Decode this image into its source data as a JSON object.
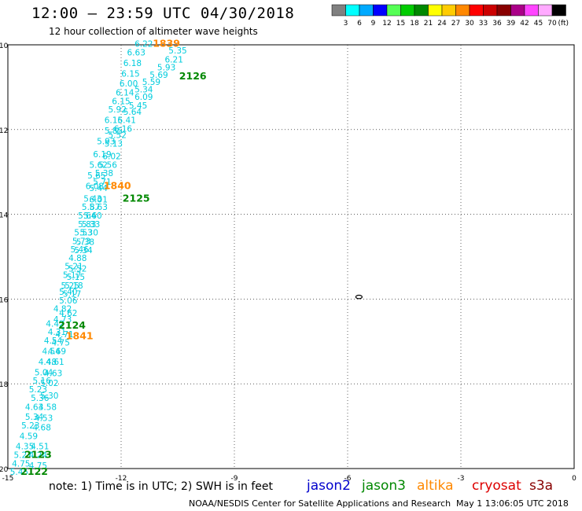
{
  "header": {
    "title": "12:00 — 23:59 UTC 04/30/2018",
    "subtitle": "12 hour collection of altimeter wave heights"
  },
  "color_scale": {
    "units": "(ft)",
    "bins": [
      {
        "label": "3",
        "color": "#808080"
      },
      {
        "label": "6",
        "color": "#00ffff"
      },
      {
        "label": "9",
        "color": "#00aaff"
      },
      {
        "label": "12",
        "color": "#0000ff"
      },
      {
        "label": "15",
        "color": "#55ff55"
      },
      {
        "label": "18",
        "color": "#00cc00"
      },
      {
        "label": "21",
        "color": "#008800"
      },
      {
        "label": "24",
        "color": "#ffff00"
      },
      {
        "label": "27",
        "color": "#ffcc00"
      },
      {
        "label": "30",
        "color": "#ff8800"
      },
      {
        "label": "33",
        "color": "#ff0000"
      },
      {
        "label": "36",
        "color": "#cc0000"
      },
      {
        "label": "39",
        "color": "#880000"
      },
      {
        "label": "42",
        "color": "#aa0088"
      },
      {
        "label": "45",
        "color": "#ff44ff"
      },
      {
        "label": "70",
        "color": "#ffaaff"
      },
      {
        "label": "",
        "color": "#000000"
      }
    ]
  },
  "map": {
    "lon_range": [
      -15,
      0
    ],
    "lat_range": [
      -20,
      -10
    ],
    "x_ticks": [
      "-15",
      "-12",
      "-9",
      "-6",
      "-3",
      "0"
    ],
    "y_ticks": [
      "-10",
      "-12",
      "-14",
      "-16",
      "-18",
      "-20"
    ],
    "grid": true,
    "grid_style": "dotted",
    "island_marker": {
      "lon": -5.7,
      "lat": -15.95
    }
  },
  "chart_data": {
    "type": "scatter",
    "xlabel": "",
    "ylabel": "",
    "xlim": [
      -15,
      0
    ],
    "ylim": [
      -20,
      -10
    ],
    "tracks": [
      {
        "satellite": "jason3",
        "color_key": "cyan",
        "points": [
          {
            "lon": -11.4,
            "lat": -10.05,
            "v": "6.22"
          },
          {
            "lon": -11.6,
            "lat": -10.25,
            "v": "6.63"
          },
          {
            "lon": -10.5,
            "lat": -10.2,
            "v": "5.35"
          },
          {
            "lon": -10.6,
            "lat": -10.42,
            "v": "6.21"
          },
          {
            "lon": -11.7,
            "lat": -10.5,
            "v": "6.18"
          },
          {
            "lon": -10.8,
            "lat": -10.6,
            "v": "5.93"
          },
          {
            "lon": -11.75,
            "lat": -10.75,
            "v": "6.15"
          },
          {
            "lon": -11.0,
            "lat": -10.78,
            "v": "5.69"
          },
          {
            "lon": -11.8,
            "lat": -10.98,
            "v": "6.00"
          },
          {
            "lon": -11.2,
            "lat": -10.95,
            "v": "5.59"
          },
          {
            "lon": -11.4,
            "lat": -11.12,
            "v": "5.34"
          },
          {
            "lon": -11.9,
            "lat": -11.2,
            "v": "6.14"
          },
          {
            "lon": -11.4,
            "lat": -11.3,
            "v": "6.09"
          },
          {
            "lon": -12.0,
            "lat": -11.4,
            "v": "6.15"
          },
          {
            "lon": -11.55,
            "lat": -11.5,
            "v": "5.45"
          },
          {
            "lon": -12.1,
            "lat": -11.6,
            "v": "5.92"
          },
          {
            "lon": -11.7,
            "lat": -11.65,
            "v": "5.64"
          },
          {
            "lon": -12.2,
            "lat": -11.85,
            "v": "6.16"
          },
          {
            "lon": -11.85,
            "lat": -11.85,
            "v": "5.41"
          },
          {
            "lon": -12.2,
            "lat": -12.1,
            "v": "5.85"
          },
          {
            "lon": -11.95,
            "lat": -12.05,
            "v": "6.16"
          },
          {
            "lon": -12.1,
            "lat": -12.2,
            "v": "5.52"
          },
          {
            "lon": -12.4,
            "lat": -12.35,
            "v": "5.93"
          },
          {
            "lon": -12.2,
            "lat": -12.4,
            "v": "5.13"
          },
          {
            "lon": -12.5,
            "lat": -12.65,
            "v": "6.19"
          },
          {
            "lon": -12.25,
            "lat": -12.7,
            "v": "6.02"
          },
          {
            "lon": -12.6,
            "lat": -12.9,
            "v": "5.62"
          },
          {
            "lon": -12.35,
            "lat": -12.9,
            "v": "5.56"
          },
          {
            "lon": -12.65,
            "lat": -13.15,
            "v": "5.65"
          },
          {
            "lon": -12.45,
            "lat": -13.1,
            "v": "5.38"
          },
          {
            "lon": -12.5,
            "lat": -13.3,
            "v": "5.71"
          },
          {
            "lon": -12.7,
            "lat": -13.4,
            "v": "6.08"
          },
          {
            "lon": -12.6,
            "lat": -13.45,
            "v": "5.44"
          },
          {
            "lon": -12.75,
            "lat": -13.7,
            "v": "5.43"
          },
          {
            "lon": -12.6,
            "lat": -13.72,
            "v": "6.01"
          },
          {
            "lon": -12.8,
            "lat": -13.9,
            "v": "5.87"
          },
          {
            "lon": -12.6,
            "lat": -13.9,
            "v": "5.63"
          },
          {
            "lon": -12.9,
            "lat": -14.1,
            "v": "5.64"
          },
          {
            "lon": -12.75,
            "lat": -14.1,
            "v": "5.60"
          },
          {
            "lon": -12.9,
            "lat": -14.3,
            "v": "5.83"
          },
          {
            "lon": -12.8,
            "lat": -14.3,
            "v": "5.33"
          },
          {
            "lon": -13.0,
            "lat": -14.5,
            "v": "5.53"
          },
          {
            "lon": -12.85,
            "lat": -14.5,
            "v": "5.30"
          },
          {
            "lon": -13.05,
            "lat": -14.7,
            "v": "5.73"
          },
          {
            "lon": -12.95,
            "lat": -14.72,
            "v": "5.38"
          },
          {
            "lon": -13.1,
            "lat": -14.9,
            "v": "5.46"
          },
          {
            "lon": -13.0,
            "lat": -14.92,
            "v": "5.34"
          },
          {
            "lon": -13.15,
            "lat": -15.1,
            "v": "4.88"
          },
          {
            "lon": -13.25,
            "lat": -15.3,
            "v": "5.21"
          },
          {
            "lon": -13.15,
            "lat": -15.35,
            "v": "5.52"
          },
          {
            "lon": -13.3,
            "lat": -15.5,
            "v": "5.17"
          },
          {
            "lon": -13.2,
            "lat": -15.55,
            "v": "5.15"
          },
          {
            "lon": -13.35,
            "lat": -15.75,
            "v": "5.25"
          },
          {
            "lon": -13.25,
            "lat": -15.75,
            "v": "5.18"
          },
          {
            "lon": -13.4,
            "lat": -15.9,
            "v": "5.40"
          },
          {
            "lon": -13.3,
            "lat": -15.95,
            "v": "5.17"
          },
          {
            "lon": -13.4,
            "lat": -16.1,
            "v": "5.06"
          },
          {
            "lon": -13.55,
            "lat": -16.3,
            "v": "4.82"
          },
          {
            "lon": -13.4,
            "lat": -16.4,
            "v": "4.62"
          },
          {
            "lon": -13.55,
            "lat": -16.55,
            "v": "4.73"
          },
          {
            "lon": -13.75,
            "lat": -16.65,
            "v": "4.42"
          },
          {
            "lon": -13.7,
            "lat": -16.85,
            "v": "4.31"
          },
          {
            "lon": -13.5,
            "lat": -16.9,
            "v": "4.71"
          },
          {
            "lon": -13.8,
            "lat": -17.05,
            "v": "4.54"
          },
          {
            "lon": -13.6,
            "lat": -17.1,
            "v": "4.75"
          },
          {
            "lon": -13.85,
            "lat": -17.3,
            "v": "4.54"
          },
          {
            "lon": -13.7,
            "lat": -17.3,
            "v": "4.69"
          },
          {
            "lon": -13.95,
            "lat": -17.55,
            "v": "4.48"
          },
          {
            "lon": -13.75,
            "lat": -17.55,
            "v": "4.61"
          },
          {
            "lon": -14.05,
            "lat": -17.8,
            "v": "5.04"
          },
          {
            "lon": -13.8,
            "lat": -17.82,
            "v": "4.63"
          },
          {
            "lon": -14.1,
            "lat": -18.0,
            "v": "5.16"
          },
          {
            "lon": -13.9,
            "lat": -18.05,
            "v": "5.02"
          },
          {
            "lon": -14.2,
            "lat": -18.2,
            "v": "5.23"
          },
          {
            "lon": -14.15,
            "lat": -18.4,
            "v": "5.36"
          },
          {
            "lon": -13.9,
            "lat": -18.35,
            "v": "5.30"
          },
          {
            "lon": -14.3,
            "lat": -18.62,
            "v": "4.63"
          },
          {
            "lon": -13.95,
            "lat": -18.62,
            "v": "4.58"
          },
          {
            "lon": -14.3,
            "lat": -18.85,
            "v": "5.34"
          },
          {
            "lon": -14.05,
            "lat": -18.88,
            "v": "4.53"
          },
          {
            "lon": -14.4,
            "lat": -19.05,
            "v": "5.23"
          },
          {
            "lon": -14.1,
            "lat": -19.1,
            "v": "4.68"
          },
          {
            "lon": -14.45,
            "lat": -19.3,
            "v": "4.59"
          },
          {
            "lon": -14.55,
            "lat": -19.55,
            "v": "4.35"
          },
          {
            "lon": -14.15,
            "lat": -19.55,
            "v": "4.51"
          },
          {
            "lon": -14.6,
            "lat": -19.75,
            "v": "5.27"
          },
          {
            "lon": -14.2,
            "lat": -19.75,
            "v": "4.24"
          },
          {
            "lon": -14.65,
            "lat": -19.95,
            "v": "4.75"
          },
          {
            "lon": -14.2,
            "lat": -20.0,
            "v": "4.75"
          },
          {
            "lon": -14.7,
            "lat": -20.15,
            "v": "5.45"
          }
        ]
      }
    ],
    "pass_labels": [
      {
        "text": "1839",
        "satellite": "altika",
        "lon": -10.8,
        "lat": -10.05
      },
      {
        "text": "2126",
        "satellite": "jason3",
        "lon": -10.1,
        "lat": -10.82
      },
      {
        "text": "1840",
        "satellite": "altika",
        "lon": -12.1,
        "lat": -13.4
      },
      {
        "text": "2125",
        "satellite": "jason3",
        "lon": -11.6,
        "lat": -13.7
      },
      {
        "text": "2124",
        "satellite": "jason3",
        "lon": -13.3,
        "lat": -16.7
      },
      {
        "text": "1841",
        "satellite": "altika",
        "lon": -13.1,
        "lat": -16.95
      },
      {
        "text": "2123",
        "satellite": "jason3",
        "lon": -14.2,
        "lat": -19.75
      },
      {
        "text": "2122",
        "satellite": "jason3",
        "lon": -14.3,
        "lat": -20.15
      }
    ]
  },
  "footer": {
    "note": "note:  1) Time is in UTC; 2) SWH is in feet",
    "satellites": [
      {
        "name": "jason2",
        "color": "#0000cc"
      },
      {
        "name": "jason3",
        "color": "#008800"
      },
      {
        "name": "altika",
        "color": "#ff8800"
      },
      {
        "name": "cryosat",
        "color": "#dd0000"
      },
      {
        "name": "s3a",
        "color": "#880000"
      }
    ],
    "credit": "NOAA/NESDIS Center for Satellite Applications and Research",
    "timestamp": "May  1 13:06:05 UTC 2018"
  }
}
